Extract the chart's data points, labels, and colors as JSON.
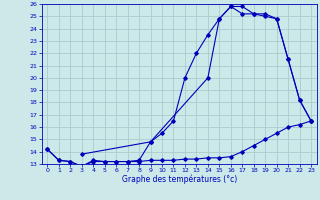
{
  "xlabel": "Graphe des températures (°c)",
  "xlim": [
    -0.5,
    23.5
  ],
  "ylim": [
    13,
    26
  ],
  "xticks": [
    0,
    1,
    2,
    3,
    4,
    5,
    6,
    7,
    8,
    9,
    10,
    11,
    12,
    13,
    14,
    15,
    16,
    17,
    18,
    19,
    20,
    21,
    22,
    23
  ],
  "yticks": [
    13,
    14,
    15,
    16,
    17,
    18,
    19,
    20,
    21,
    22,
    23,
    24,
    25,
    26
  ],
  "background_color": "#cce8e8",
  "grid_color": "#aacccc",
  "line_color": "#0000bb",
  "curve1_x": [
    0,
    1,
    2,
    3,
    4,
    5,
    6,
    7,
    8,
    9,
    10,
    11,
    12,
    13,
    14,
    15,
    16,
    17,
    18,
    19,
    20,
    21,
    22,
    23
  ],
  "curve1_y": [
    14.2,
    13.3,
    13.2,
    12.8,
    13.3,
    13.2,
    13.2,
    13.2,
    13.3,
    14.8,
    15.5,
    16.5,
    20.0,
    22.0,
    23.5,
    24.8,
    25.8,
    25.8,
    25.2,
    25.2,
    24.8,
    21.5,
    18.2,
    16.5
  ],
  "curve2_x": [
    0,
    1,
    2,
    3,
    4,
    5,
    6,
    7,
    8,
    9,
    10,
    11,
    12,
    13,
    14,
    15,
    16,
    17,
    18,
    19,
    20,
    21,
    22,
    23
  ],
  "curve2_y": [
    14.2,
    13.3,
    13.2,
    12.8,
    13.2,
    13.2,
    13.2,
    13.2,
    13.2,
    13.3,
    13.3,
    13.3,
    13.4,
    13.4,
    13.5,
    13.5,
    13.6,
    14.0,
    14.5,
    15.0,
    15.5,
    16.0,
    16.2,
    16.5
  ],
  "curve3_x": [
    3,
    9,
    14,
    15,
    16,
    17,
    18,
    19,
    20,
    21,
    22,
    23
  ],
  "curve3_y": [
    13.8,
    14.8,
    20.0,
    24.8,
    25.8,
    25.2,
    25.2,
    25.0,
    24.8,
    21.5,
    18.2,
    16.5
  ]
}
